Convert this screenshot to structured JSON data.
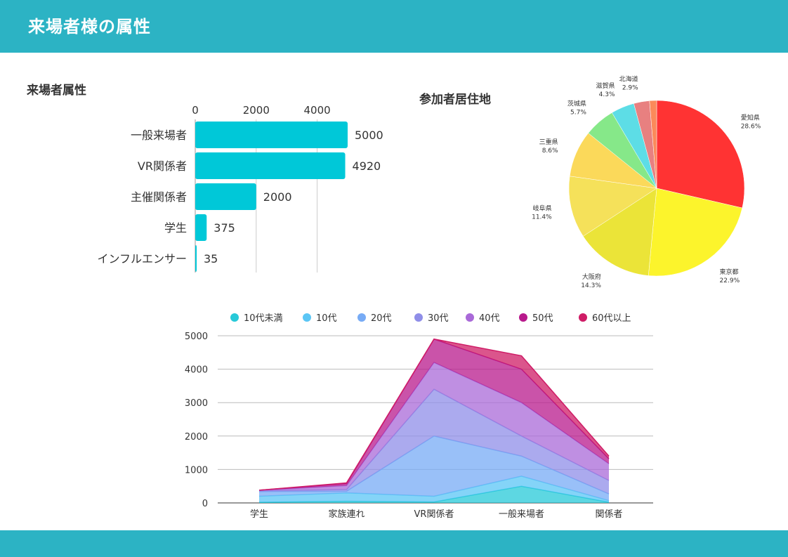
{
  "header": {
    "title": "来場者様の属性"
  },
  "colors": {
    "header_bg": "#2cb3c4",
    "bar": "#00c8d8"
  },
  "chart_data": [
    {
      "type": "bar",
      "orientation": "horizontal",
      "title": "来場者属性",
      "categories": [
        "一般来場者",
        "VR関係者",
        "主催関係者",
        "学生",
        "インフルエンサー"
      ],
      "values": [
        5000,
        4920,
        2000,
        375,
        35
      ],
      "xticks": [
        "0",
        "2000",
        "4000"
      ],
      "xlim": [
        0,
        5000
      ],
      "grid": true,
      "data_labels": true
    },
    {
      "type": "pie",
      "title": "参加者居住地",
      "slices": [
        {
          "label": "愛知県",
          "value": 28.6,
          "pct": "28.6%",
          "color": "#ff3333"
        },
        {
          "label": "東京都",
          "value": 22.9,
          "pct": "22.9%",
          "color": "#fcf42c"
        },
        {
          "label": "大阪府",
          "value": 14.3,
          "pct": "14.3%",
          "color": "#ebe438"
        },
        {
          "label": "岐阜県",
          "value": 11.4,
          "pct": "11.4%",
          "color": "#f5e15a"
        },
        {
          "label": "三重県",
          "value": 8.6,
          "pct": "8.6%",
          "color": "#fbd95a"
        },
        {
          "label": "茨城県",
          "value": 5.7,
          "pct": "5.7%",
          "color": "#86e889"
        },
        {
          "label": "滋賀県",
          "value": 4.3,
          "pct": "4.3%",
          "color": "#5ddde6"
        },
        {
          "label": "北海道",
          "value": 2.9,
          "pct": "2.9%",
          "color": "#e88080"
        },
        {
          "label": "",
          "value": 1.3,
          "pct": "",
          "color": "#fb8a5a"
        }
      ]
    },
    {
      "type": "area",
      "stacked": true,
      "categories": [
        "学生",
        "家族連れ",
        "VR関係者",
        "一般来場者",
        "関係者"
      ],
      "ylim": [
        0,
        5000
      ],
      "yticks": [
        "0",
        "1000",
        "2000",
        "3000",
        "4000",
        "5000"
      ],
      "grid": true,
      "legend_position": "top",
      "series": [
        {
          "name": "10代未満",
          "color": "#27c9d8",
          "values": [
            20,
            50,
            30,
            500,
            20
          ]
        },
        {
          "name": "10代",
          "color": "#5bc6f5",
          "values": [
            180,
            250,
            170,
            300,
            50
          ]
        },
        {
          "name": "20代",
          "color": "#77abf5",
          "values": [
            140,
            50,
            1800,
            600,
            200
          ]
        },
        {
          "name": "30代",
          "color": "#8f8ee8",
          "values": [
            20,
            50,
            1400,
            600,
            400
          ]
        },
        {
          "name": "40代",
          "color": "#a969d8",
          "values": [
            15,
            120,
            800,
            1000,
            500
          ]
        },
        {
          "name": "50代",
          "color": "#b8198c",
          "values": [
            5,
            60,
            700,
            1000,
            150
          ]
        },
        {
          "name": "60代以上",
          "color": "#cf1c66",
          "values": [
            0,
            20,
            0,
            400,
            80
          ]
        }
      ]
    }
  ]
}
